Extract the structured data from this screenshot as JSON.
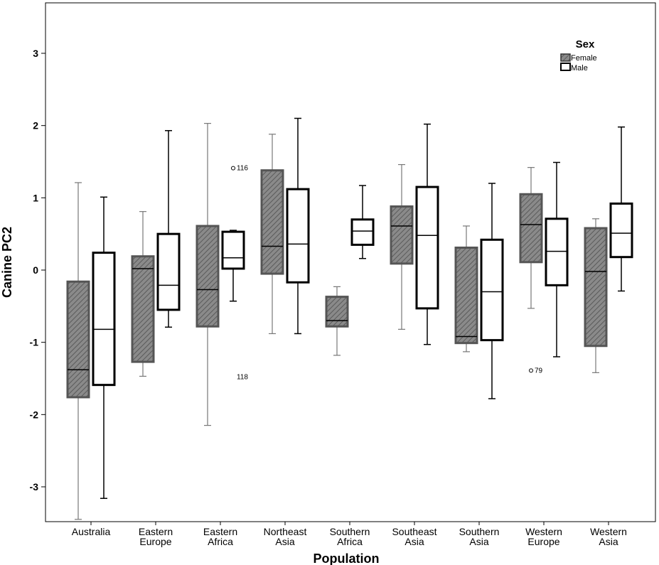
{
  "chart_data": {
    "type": "boxplot",
    "xlabel": "Population",
    "ylabel": "Canine PC2",
    "ylim": [
      -3.5,
      3.6
    ],
    "yticks": [
      -3,
      -2,
      -1,
      0,
      1,
      2,
      3
    ],
    "legend": {
      "title": "Sex",
      "placement": "top-right",
      "entries": [
        {
          "name": "Female",
          "style": "hatched"
        },
        {
          "name": "Male",
          "style": "white"
        }
      ]
    },
    "categories": [
      {
        "label": [
          "Australia"
        ]
      },
      {
        "label": [
          "Eastern",
          "Europe"
        ]
      },
      {
        "label": [
          "Eastern",
          "Africa"
        ]
      },
      {
        "label": [
          "Northeast",
          "Asia"
        ]
      },
      {
        "label": [
          "Southern",
          "Africa"
        ]
      },
      {
        "label": [
          "Southeast",
          "Asia"
        ]
      },
      {
        "label": [
          "Southern",
          "Asia"
        ]
      },
      {
        "label": [
          "Western",
          "Europe"
        ]
      },
      {
        "label": [
          "Western",
          "Asia"
        ]
      }
    ],
    "series": [
      {
        "name": "Female",
        "boxes": [
          {
            "min": -3.45,
            "q1": -1.76,
            "median": -1.38,
            "q3": -0.16,
            "max": 1.21
          },
          {
            "min": -1.47,
            "q1": -1.27,
            "median": 0.02,
            "q3": 0.19,
            "max": 0.81
          },
          {
            "min": -2.15,
            "q1": -0.78,
            "median": -0.27,
            "q3": 0.61,
            "max": 2.03
          },
          {
            "min": -0.88,
            "q1": -0.05,
            "median": 0.33,
            "q3": 1.38,
            "max": 1.88
          },
          {
            "min": -1.18,
            "q1": -0.78,
            "median": -0.7,
            "q3": -0.37,
            "max": -0.23
          },
          {
            "min": -0.82,
            "q1": 0.09,
            "median": 0.61,
            "q3": 0.88,
            "max": 1.46
          },
          {
            "min": -1.13,
            "q1": -1.01,
            "median": -0.92,
            "q3": 0.31,
            "max": 0.61
          },
          {
            "min": -0.53,
            "q1": 0.11,
            "median": 0.63,
            "q3": 1.05,
            "max": 1.42
          },
          {
            "min": -1.42,
            "q1": -1.05,
            "median": -0.02,
            "q3": 0.58,
            "max": 0.71
          }
        ]
      },
      {
        "name": "Male",
        "boxes": [
          {
            "min": -3.16,
            "q1": -1.59,
            "median": -0.82,
            "q3": 0.24,
            "max": 1.01
          },
          {
            "min": -0.79,
            "q1": -0.55,
            "median": -0.21,
            "q3": 0.5,
            "max": 1.93
          },
          {
            "min": -0.43,
            "q1": 0.02,
            "median": 0.17,
            "q3": 0.53,
            "max": 0.55
          },
          {
            "min": -0.88,
            "q1": -0.17,
            "median": 0.36,
            "q3": 1.12,
            "max": 2.1
          },
          {
            "min": 0.16,
            "q1": 0.35,
            "median": 0.54,
            "q3": 0.7,
            "max": 1.17
          },
          {
            "min": -1.03,
            "q1": -0.53,
            "median": 0.48,
            "q3": 1.15,
            "max": 2.02
          },
          {
            "min": -1.78,
            "q1": -0.97,
            "median": -0.3,
            "q3": 0.42,
            "max": 1.2
          },
          {
            "min": -1.2,
            "q1": -0.21,
            "median": 0.26,
            "q3": 0.71,
            "max": 1.49
          },
          {
            "min": -0.29,
            "q1": 0.18,
            "median": 0.51,
            "q3": 0.92,
            "max": 1.98
          }
        ]
      }
    ],
    "outliers": [
      {
        "category_index": 2,
        "series": "Male",
        "value": 1.41,
        "label": "116",
        "marker": "circle"
      },
      {
        "category_index": 2,
        "series": "Male",
        "value": -1.48,
        "label": "118",
        "marker": "none"
      },
      {
        "category_index": 7,
        "series": "Female",
        "value": -1.39,
        "label": "79",
        "marker": "circle"
      }
    ]
  }
}
